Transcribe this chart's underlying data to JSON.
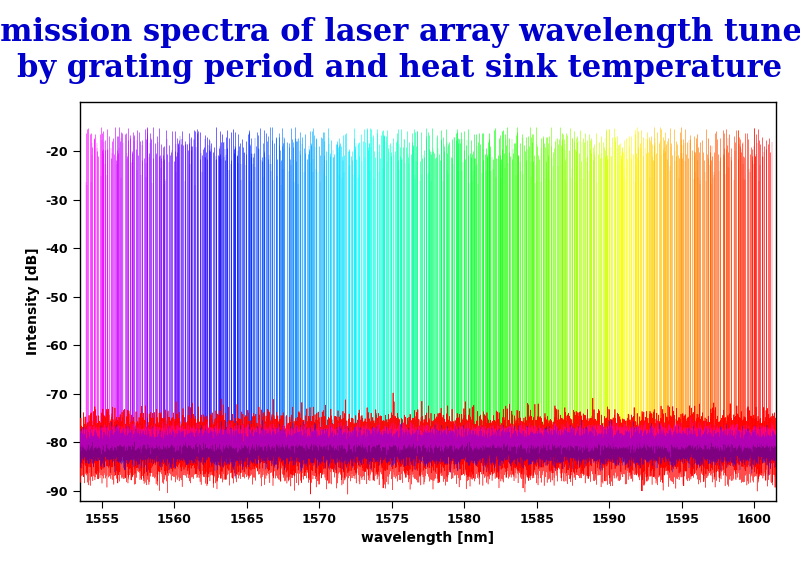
{
  "title": "Emission spectra of laser array wavelength tuned\nby grating period and heat sink temperature",
  "xlabel": "wavelength [nm]",
  "ylabel": "Intensity [dB]",
  "xlim": [
    1553.5,
    1601.5
  ],
  "ylim": [
    -92,
    -10
  ],
  "yticks": [
    -20,
    -30,
    -40,
    -50,
    -60,
    -70,
    -80,
    -90
  ],
  "xticks": [
    1555,
    1560,
    1565,
    1570,
    1575,
    1580,
    1585,
    1590,
    1595,
    1600
  ],
  "xticklabels": [
    "1555",
    "1560",
    "1565",
    "1570",
    "1575",
    "1580",
    "1585",
    "1590",
    "1595",
    "1600"
  ],
  "plot_bg": "#ffffff",
  "fig_bg": "#ffffff",
  "wl_start": 1554.5,
  "wl_end": 1600.5,
  "num_channels": 46,
  "num_temps": 15,
  "temp_range_nm": 1.2,
  "peak_db_min": -22,
  "peak_db_max": -15,
  "noise_floor_db": -80,
  "linewidth": 0.5,
  "title_fontsize": 22,
  "title_color": "#0000cc",
  "axis_label_fontsize": 10,
  "tick_fontsize": 9
}
